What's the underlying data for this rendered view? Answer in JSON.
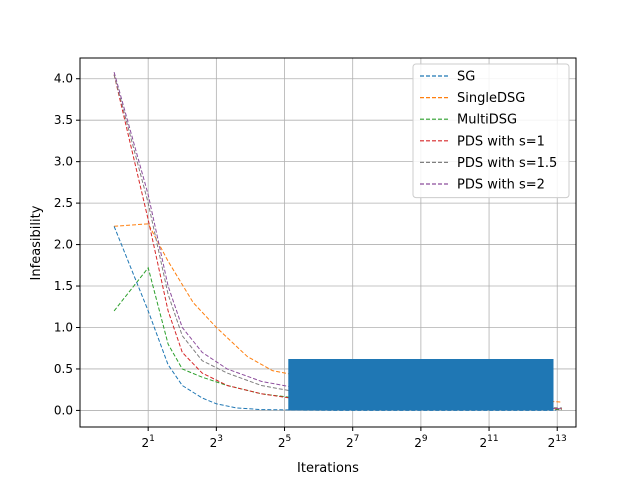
{
  "chart_data": {
    "type": "line",
    "xlabel": "Iterations",
    "ylabel": "Infeasibility",
    "xscale": "log2",
    "xlim": [
      0.5,
      12000
    ],
    "ylim": [
      -0.2,
      4.25
    ],
    "grid": true,
    "legend_position": "top-right",
    "x_ticks": [
      {
        "value": 2,
        "base": "2",
        "exp": "1"
      },
      {
        "value": 8,
        "base": "2",
        "exp": "3"
      },
      {
        "value": 32,
        "base": "2",
        "exp": "5"
      },
      {
        "value": 128,
        "base": "2",
        "exp": "7"
      },
      {
        "value": 512,
        "base": "2",
        "exp": "9"
      },
      {
        "value": 2048,
        "base": "2",
        "exp": "11"
      },
      {
        "value": 8192,
        "base": "2",
        "exp": "13"
      }
    ],
    "y_ticks": [
      "0.0",
      "0.5",
      "1.0",
      "1.5",
      "2.0",
      "2.5",
      "3.0",
      "3.5",
      "4.0"
    ],
    "series": [
      {
        "name": "SG",
        "color": "#1f77b4",
        "points": [
          [
            1,
            2.22
          ],
          [
            2,
            1.2
          ],
          [
            3,
            0.55
          ],
          [
            4,
            0.3
          ],
          [
            6,
            0.15
          ],
          [
            8,
            0.08
          ],
          [
            12,
            0.03
          ],
          [
            20,
            0.01
          ],
          [
            40,
            0.005
          ],
          [
            100,
            0.0
          ],
          [
            1000,
            0.0
          ],
          [
            8000,
            0.0
          ]
        ],
        "osc": {
          "x_start": 35,
          "x_end": 7500,
          "low": 0.0,
          "high": 0.62
        }
      },
      {
        "name": "SingleDSG",
        "color": "#ff7f0e",
        "points": [
          [
            1,
            2.22
          ],
          [
            2,
            2.25
          ],
          [
            3,
            1.8
          ],
          [
            5,
            1.3
          ],
          [
            8,
            1.0
          ],
          [
            15,
            0.65
          ],
          [
            25,
            0.48
          ],
          [
            50,
            0.4
          ],
          [
            100,
            0.36
          ],
          [
            300,
            0.3
          ],
          [
            1000,
            0.2
          ],
          [
            3000,
            0.14
          ],
          [
            9000,
            0.1
          ]
        ]
      },
      {
        "name": "MultiDSG",
        "color": "#2ca02c",
        "points": [
          [
            1,
            1.2
          ],
          [
            2,
            1.72
          ],
          [
            3,
            0.8
          ],
          [
            4,
            0.5
          ],
          [
            6,
            0.4
          ],
          [
            10,
            0.3
          ],
          [
            20,
            0.2
          ],
          [
            40,
            0.15
          ],
          [
            100,
            0.1
          ],
          [
            300,
            0.06
          ],
          [
            1000,
            0.03
          ],
          [
            9000,
            0.01
          ]
        ]
      },
      {
        "name": "PDS with s=1",
        "color": "#d62728",
        "points": [
          [
            1,
            4.05
          ],
          [
            2,
            2.3
          ],
          [
            3,
            1.2
          ],
          [
            4,
            0.7
          ],
          [
            6,
            0.45
          ],
          [
            10,
            0.3
          ],
          [
            20,
            0.2
          ],
          [
            50,
            0.12
          ],
          [
            100,
            0.08
          ],
          [
            300,
            0.05
          ],
          [
            1000,
            0.03
          ],
          [
            9000,
            0.02
          ]
        ]
      },
      {
        "name": "PDS with s=1.5",
        "color": "#7f7f7f",
        "points": [
          [
            1,
            4.05
          ],
          [
            2,
            2.5
          ],
          [
            3,
            1.4
          ],
          [
            4,
            0.9
          ],
          [
            6,
            0.6
          ],
          [
            10,
            0.45
          ],
          [
            20,
            0.3
          ],
          [
            50,
            0.2
          ],
          [
            100,
            0.15
          ],
          [
            300,
            0.1
          ],
          [
            1000,
            0.06
          ],
          [
            9000,
            0.03
          ]
        ]
      },
      {
        "name": "PDS with s=2",
        "color": "#8c4d9c",
        "points": [
          [
            1,
            4.08
          ],
          [
            2,
            2.6
          ],
          [
            3,
            1.5
          ],
          [
            4,
            1.0
          ],
          [
            6,
            0.7
          ],
          [
            10,
            0.5
          ],
          [
            20,
            0.35
          ],
          [
            50,
            0.25
          ],
          [
            100,
            0.18
          ],
          [
            300,
            0.1
          ],
          [
            1000,
            0.05
          ],
          [
            9000,
            0.02
          ]
        ]
      }
    ]
  }
}
